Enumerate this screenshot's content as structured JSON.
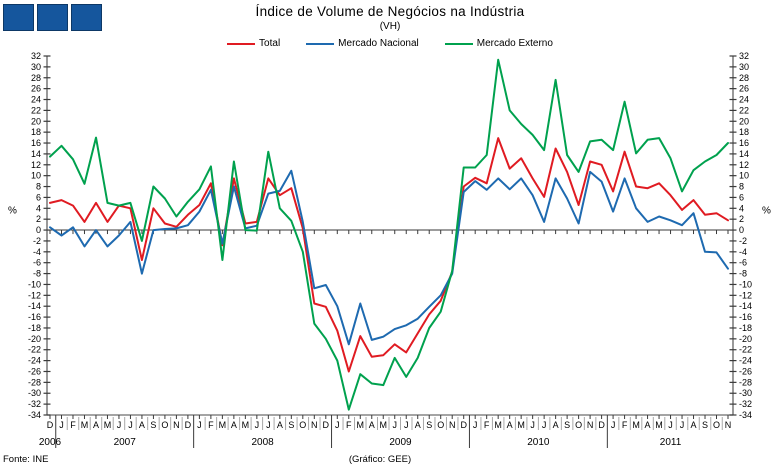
{
  "logo": {
    "color": "#15569d"
  },
  "title": "Índice de Volume de Negócios na Indústria",
  "subtitle": "(VH)",
  "legend": [
    {
      "label": "Total",
      "color": "#e01b22"
    },
    {
      "label": "Mercado Nacional",
      "color": "#1e6ab0"
    },
    {
      "label": "Mercado Externo",
      "color": "#00a14e"
    }
  ],
  "y_axis": {
    "min": -34,
    "max": 32,
    "step": 2,
    "unit_label": "%"
  },
  "footer": {
    "source": "Fonte: INE",
    "credit": "(Gráfico: GEE)"
  },
  "chart_data": {
    "type": "line",
    "title": "Índice de Volume de Negócios na Indústria (VH)",
    "ylabel": "%",
    "ylim": [
      -34,
      32
    ],
    "grid": false,
    "legend_position": "top",
    "x_months": [
      "D",
      "J",
      "F",
      "M",
      "A",
      "M",
      "J",
      "J",
      "A",
      "S",
      "O",
      "N",
      "D",
      "J",
      "F",
      "M",
      "A",
      "M",
      "J",
      "J",
      "A",
      "S",
      "O",
      "N",
      "D",
      "J",
      "F",
      "M",
      "A",
      "M",
      "J",
      "J",
      "A",
      "S",
      "O",
      "N",
      "D",
      "J",
      "F",
      "M",
      "A",
      "M",
      "J",
      "J",
      "A",
      "S",
      "O",
      "N",
      "D",
      "J",
      "F",
      "M",
      "A",
      "M",
      "J",
      "J",
      "A",
      "S",
      "O",
      "N"
    ],
    "years": [
      {
        "label": "2006",
        "from": 0,
        "to": 0
      },
      {
        "label": "2007",
        "from": 1,
        "to": 12
      },
      {
        "label": "2008",
        "from": 13,
        "to": 24
      },
      {
        "label": "2009",
        "from": 25,
        "to": 36
      },
      {
        "label": "2010",
        "from": 37,
        "to": 48
      },
      {
        "label": "2011",
        "from": 49,
        "to": 59
      }
    ],
    "series": [
      {
        "name": "Total",
        "color": "#e01b22",
        "values": [
          5,
          5.5,
          4.5,
          1.5,
          5,
          1.5,
          4.5,
          4,
          -5.5,
          4,
          1.2,
          0.6,
          2.8,
          4.6,
          8.6,
          -2.8,
          9.5,
          1.2,
          1.5,
          9.5,
          6.4,
          7.7,
          0.3,
          -13.5,
          -14.1,
          -18.5,
          -26,
          -19.5,
          -23.3,
          -23,
          -21,
          -22.5,
          -19,
          -15.5,
          -13,
          -7.7,
          8,
          9.6,
          8.6,
          16.9,
          11.3,
          13.2,
          9.5,
          6.1,
          15,
          10.7,
          4.6,
          12.6,
          12,
          7.1,
          14.4,
          8,
          7.7,
          8.6,
          6.4,
          3.7,
          5.5,
          2.8,
          3.1,
          1.8
        ]
      },
      {
        "name": "Mercado Nacional",
        "color": "#1e6ab0",
        "values": [
          0.5,
          -1,
          0.5,
          -3,
          0,
          -3,
          -1,
          1.5,
          -8,
          0,
          0.2,
          0.3,
          0.9,
          3.4,
          7.4,
          -2.5,
          8,
          0.3,
          0.8,
          6.7,
          7.2,
          10.9,
          1.5,
          -10.7,
          -10.1,
          -14,
          -21,
          -13.5,
          -20.2,
          -19.6,
          -18.2,
          -17.5,
          -16.3,
          -14.1,
          -12,
          -8,
          7,
          9,
          7.4,
          9.5,
          7.5,
          9.5,
          6.4,
          1.5,
          9.5,
          5.8,
          1.2,
          10.7,
          8.9,
          3.4,
          9.5,
          4,
          1.5,
          2.5,
          1.8,
          0.9,
          3.1,
          -4,
          -4.1,
          -7.1
        ]
      },
      {
        "name": "Mercado Externo",
        "color": "#00a14e",
        "values": [
          13.5,
          15.5,
          13,
          8.5,
          17,
          5,
          4.5,
          5,
          -2,
          8,
          5.8,
          2.5,
          5.2,
          7.5,
          11.7,
          -5.5,
          12.6,
          0,
          -0.1,
          14.4,
          4,
          1.7,
          -4,
          -17.2,
          -20,
          -24,
          -33,
          -26.5,
          -28.2,
          -28.5,
          -23.5,
          -27,
          -23.5,
          -18,
          -15,
          -7.5,
          11.5,
          11.5,
          13.8,
          31.3,
          22,
          19.5,
          17.5,
          14.7,
          27.6,
          13.8,
          10.7,
          16.3,
          16.6,
          14.7,
          23.6,
          14.1,
          16.6,
          16.9,
          13.2,
          7.1,
          11,
          12.6,
          13.8,
          16
        ]
      }
    ]
  }
}
